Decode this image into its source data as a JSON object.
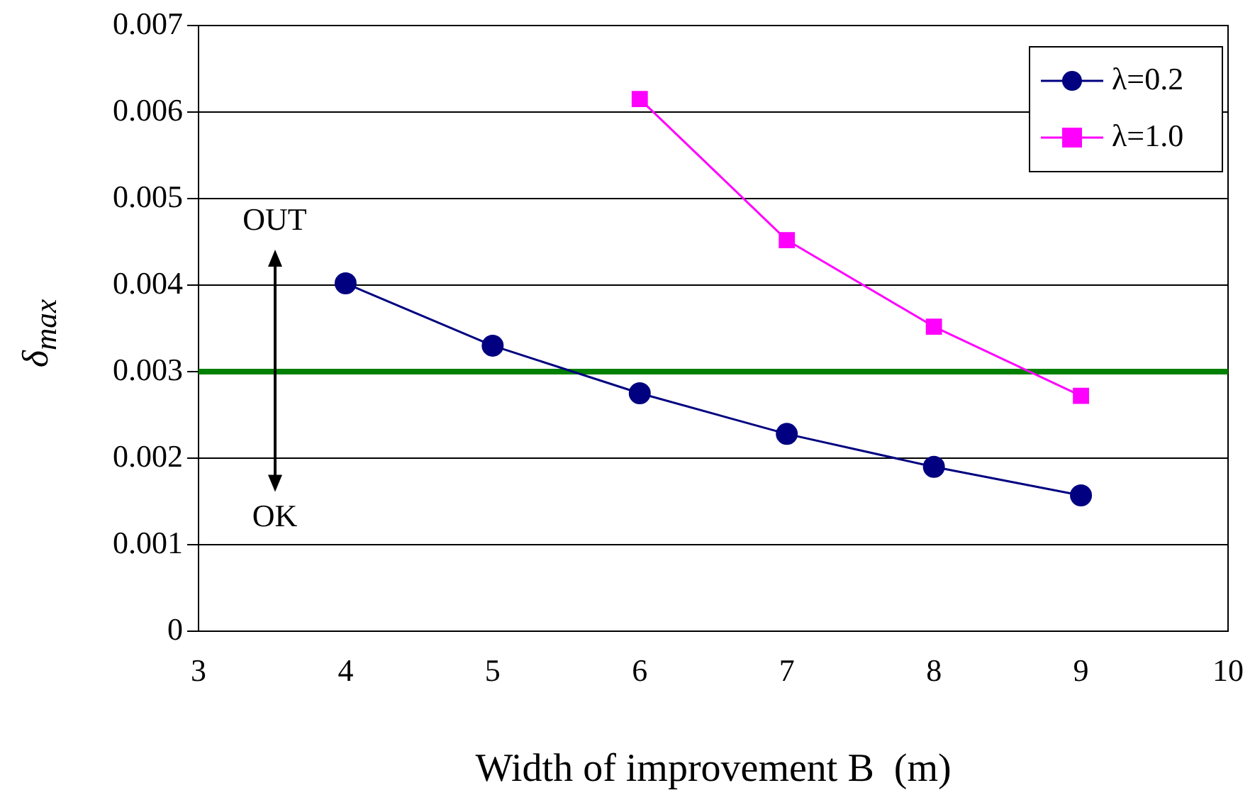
{
  "chart_data": {
    "type": "line",
    "xlabel": "Width of improvement B  (m)",
    "ylabel": "δ$_{max}$",
    "xlim": [
      3,
      10
    ],
    "xticks": [
      3,
      4,
      5,
      6,
      7,
      8,
      9,
      10
    ],
    "ylim": [
      0,
      0.007
    ],
    "yticks": [
      0,
      0.001,
      0.002,
      0.003,
      0.004,
      0.005,
      0.006,
      0.007
    ],
    "grid": "y",
    "legend": "top right",
    "series": [
      {
        "name": "λ=0.2",
        "color": "#000080",
        "marker": "circle",
        "x": [
          4,
          5,
          6,
          7,
          8,
          9
        ],
        "values": [
          0.00402,
          0.0033,
          0.00275,
          0.00228,
          0.0019,
          0.00157
        ]
      },
      {
        "name": "λ=1.0",
        "color": "#ff00ff",
        "marker": "square",
        "x": [
          6,
          7,
          8,
          9
        ],
        "values": [
          0.00615,
          0.00452,
          0.00352,
          0.00272
        ]
      }
    ],
    "ref_lines": [
      {
        "axis": "y",
        "value": 0.003,
        "color": "#008000"
      }
    ],
    "annotations": [
      "OUT",
      "OK"
    ]
  }
}
